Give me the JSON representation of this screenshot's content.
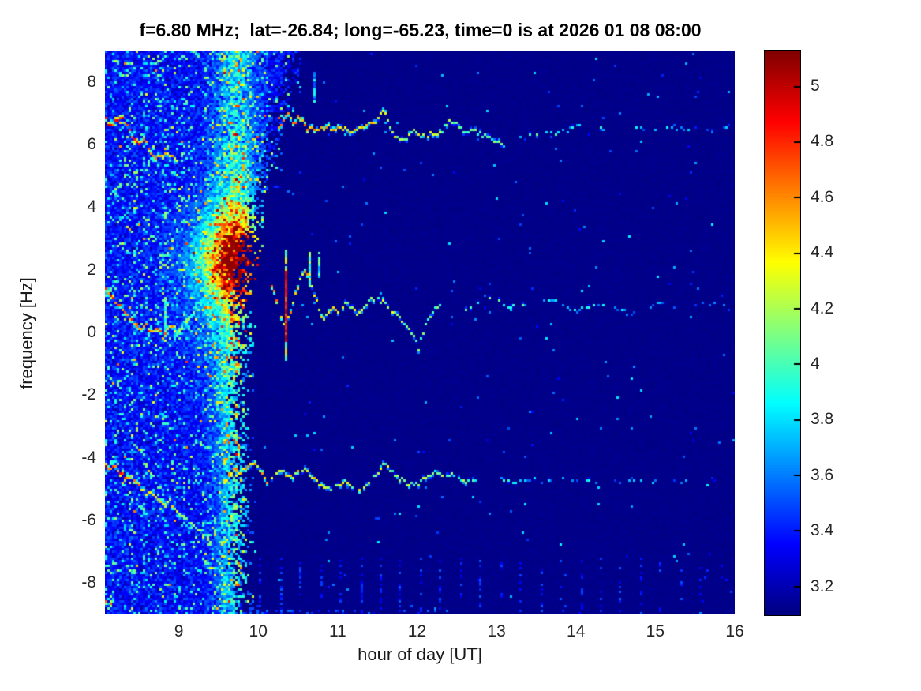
{
  "title": "f=6.80 MHz;  lat=-26.84; long=-65.23, time=0 is at 2026 01 08 08:00",
  "colors": {
    "figure_background": "#ffffff",
    "plot_background_deep_blue": "#00008f",
    "title_text": "#000000",
    "tick_text": "#262626"
  },
  "chart_data": {
    "type": "heatmap",
    "subtype": "spectrogram",
    "colormap": "jet",
    "title": "f=6.80 MHz;  lat=-26.84; long=-65.23, time=0 is at 2026 01 08 08:00",
    "xlabel": "hour of day [UT]",
    "ylabel": "frequency [Hz]",
    "xlim": [
      8.07,
      16
    ],
    "ylim": [
      -9,
      9
    ],
    "x_ticks": [
      9,
      10,
      11,
      12,
      13,
      14,
      15,
      16
    ],
    "y_ticks": [
      8,
      6,
      4,
      2,
      0,
      -2,
      -4,
      -6,
      -8
    ],
    "grid": false,
    "legend": "none",
    "colorbar": {
      "position": "right",
      "min": 3.1,
      "max": 5.13,
      "ticks": [
        5,
        4.8,
        4.6,
        4.4,
        4.2,
        4,
        3.8,
        3.6,
        3.4,
        3.2
      ]
    },
    "background_value": 3.12,
    "noise_region": {
      "t_start": 8.07,
      "t_end_low_freq": 9.66,
      "t_end_high_freq": 10.32,
      "f_knee": 1.5,
      "base_value": 3.3,
      "surge_column": {
        "t_center": 9.72,
        "t_sigma": 0.17,
        "boost": 0.5
      }
    },
    "blob": {
      "center_t": 9.72,
      "center_f": 2.35,
      "sigma_t": 0.3,
      "sigma_f": 0.9,
      "peak_add": 1.4,
      "halo": {
        "sigma_t": 0.45,
        "sigma_f": 2.2,
        "peak_add": 0.5
      },
      "ridge": {
        "from": [
          8.95,
          -0.2
        ],
        "to": [
          9.62,
          2.2
        ],
        "width_f": 0.4,
        "amp": 4.45
      }
    },
    "traces": [
      {
        "name": "upper-echo-bright-left",
        "amp0": 4.85,
        "amp1": 4.45,
        "width": 2,
        "prob": 1.0,
        "points": [
          [
            8.07,
            6.85
          ],
          [
            8.13,
            6.6
          ],
          [
            8.2,
            6.75
          ],
          [
            8.28,
            6.9
          ],
          [
            8.35,
            6.6
          ],
          [
            8.42,
            6.25
          ],
          [
            8.5,
            5.95
          ],
          [
            8.57,
            6.15
          ],
          [
            8.63,
            5.8
          ],
          [
            8.7,
            5.6
          ],
          [
            8.78,
            5.55
          ],
          [
            8.85,
            5.75
          ],
          [
            8.92,
            5.6
          ],
          [
            8.98,
            5.5
          ]
        ]
      },
      {
        "name": "upper-echo-main",
        "amp0": 4.6,
        "amp1": 3.95,
        "width": 1,
        "prob": 0.95,
        "points": [
          [
            10.25,
            6.5
          ],
          [
            10.32,
            6.8
          ],
          [
            10.38,
            6.95
          ],
          [
            10.44,
            6.7
          ],
          [
            10.5,
            6.88
          ],
          [
            10.57,
            6.65
          ],
          [
            10.63,
            6.5
          ],
          [
            10.7,
            6.55
          ],
          [
            10.78,
            6.45
          ],
          [
            10.85,
            6.6
          ],
          [
            10.95,
            6.45
          ],
          [
            11.05,
            6.55
          ],
          [
            11.15,
            6.4
          ],
          [
            11.25,
            6.45
          ],
          [
            11.35,
            6.6
          ],
          [
            11.45,
            6.7
          ],
          [
            11.52,
            6.85
          ],
          [
            11.58,
            7.05
          ],
          [
            11.65,
            6.6
          ],
          [
            11.72,
            6.3
          ],
          [
            11.8,
            6.15
          ],
          [
            11.88,
            6.2
          ],
          [
            11.95,
            6.45
          ],
          [
            12.02,
            6.3
          ],
          [
            12.1,
            6.25
          ],
          [
            12.18,
            6.35
          ],
          [
            12.25,
            6.3
          ],
          [
            12.32,
            6.45
          ],
          [
            12.4,
            6.75
          ],
          [
            12.48,
            6.65
          ],
          [
            12.55,
            6.5
          ],
          [
            12.62,
            6.4
          ],
          [
            12.7,
            6.45
          ],
          [
            12.8,
            6.3
          ],
          [
            12.9,
            6.25
          ],
          [
            13.0,
            6.1
          ],
          [
            13.1,
            5.9
          ]
        ]
      },
      {
        "name": "upper-echo-faint-right",
        "amp0": 3.9,
        "amp1": 3.55,
        "width": 1,
        "prob": 0.3,
        "points": [
          [
            13.3,
            6.3
          ],
          [
            13.55,
            6.4
          ],
          [
            13.8,
            6.35
          ],
          [
            14.0,
            6.6
          ],
          [
            14.2,
            6.5
          ],
          [
            14.45,
            6.55
          ],
          [
            14.7,
            6.6
          ],
          [
            14.95,
            6.5
          ],
          [
            15.2,
            6.55
          ],
          [
            15.45,
            6.45
          ],
          [
            15.7,
            6.5
          ],
          [
            15.95,
            6.6
          ]
        ]
      },
      {
        "name": "center-echo-bright-left",
        "amp0": 4.75,
        "amp1": 4.55,
        "width": 2,
        "prob": 1.0,
        "points": [
          [
            8.07,
            1.45
          ],
          [
            8.15,
            1.15
          ],
          [
            8.22,
            0.95
          ],
          [
            8.3,
            0.75
          ],
          [
            8.38,
            0.5
          ],
          [
            8.46,
            0.2
          ],
          [
            8.52,
            0.05
          ],
          [
            8.58,
            0.3
          ],
          [
            8.64,
            -0.05
          ],
          [
            8.72,
            0.15
          ],
          [
            8.8,
            -0.1
          ],
          [
            8.88,
            0.2
          ],
          [
            8.95,
            0.05
          ]
        ]
      },
      {
        "name": "center-echo-main",
        "amp0": 4.5,
        "amp1": 4.0,
        "width": 1,
        "prob": 0.95,
        "points": [
          [
            10.15,
            1.7
          ],
          [
            10.22,
            1.2
          ],
          [
            10.28,
            0.6
          ],
          [
            10.33,
            0.1
          ],
          [
            10.4,
            0.6
          ],
          [
            10.47,
            1.2
          ],
          [
            10.53,
            1.7
          ],
          [
            10.58,
            1.9
          ],
          [
            10.64,
            1.75
          ],
          [
            10.7,
            1.3
          ],
          [
            10.76,
            0.8
          ],
          [
            10.82,
            0.35
          ],
          [
            10.88,
            0.55
          ],
          [
            10.94,
            0.75
          ],
          [
            11.0,
            0.6
          ],
          [
            11.06,
            0.8
          ],
          [
            11.12,
            1.0
          ],
          [
            11.18,
            0.75
          ],
          [
            11.25,
            0.6
          ],
          [
            11.32,
            0.8
          ],
          [
            11.4,
            1.0
          ],
          [
            11.48,
            1.15
          ],
          [
            11.56,
            1.0
          ],
          [
            11.64,
            0.8
          ],
          [
            11.72,
            0.6
          ],
          [
            11.8,
            0.4
          ],
          [
            11.88,
            0.2
          ],
          [
            11.96,
            -0.1
          ],
          [
            12.02,
            -0.5
          ],
          [
            12.08,
            0.0
          ],
          [
            12.14,
            0.4
          ],
          [
            12.2,
            0.7
          ],
          [
            12.3,
            0.85
          ]
        ]
      },
      {
        "name": "center-echo-faint-right",
        "amp0": 3.95,
        "amp1": 3.55,
        "width": 1,
        "prob": 0.42,
        "points": [
          [
            12.5,
            0.4
          ],
          [
            12.62,
            0.7
          ],
          [
            12.75,
            0.95
          ],
          [
            12.88,
            1.05
          ],
          [
            13.0,
            1.1
          ],
          [
            13.12,
            0.9
          ],
          [
            13.25,
            0.75
          ],
          [
            13.4,
            0.85
          ],
          [
            13.55,
            1.0
          ],
          [
            13.7,
            1.05
          ],
          [
            13.85,
            0.85
          ],
          [
            14.0,
            0.65
          ],
          [
            14.15,
            0.8
          ],
          [
            14.3,
            0.9
          ],
          [
            14.5,
            0.75
          ],
          [
            14.7,
            0.6
          ],
          [
            14.9,
            0.8
          ],
          [
            15.1,
            0.9
          ],
          [
            15.3,
            0.75
          ],
          [
            15.55,
            0.85
          ],
          [
            15.8,
            0.95
          ],
          [
            15.95,
            0.7
          ]
        ]
      },
      {
        "name": "lower-echo-bright-left",
        "amp0": 4.8,
        "amp1": 3.9,
        "width": 2,
        "prob": 1.0,
        "points": [
          [
            8.07,
            -4.15
          ],
          [
            8.14,
            -4.35
          ],
          [
            8.2,
            -4.25
          ],
          [
            8.27,
            -4.5
          ],
          [
            8.34,
            -4.7
          ],
          [
            8.4,
            -4.55
          ],
          [
            8.47,
            -4.75
          ],
          [
            8.54,
            -5.0
          ],
          [
            8.6,
            -5.2
          ],
          [
            8.67,
            -5.05
          ],
          [
            8.74,
            -5.3
          ],
          [
            8.8,
            -5.5
          ],
          [
            8.87,
            -5.35
          ],
          [
            8.94,
            -5.6
          ],
          [
            9.0,
            -5.75
          ],
          [
            9.1,
            -5.95
          ],
          [
            9.2,
            -6.2
          ],
          [
            9.3,
            -6.4
          ],
          [
            9.4,
            -6.55
          ]
        ]
      },
      {
        "name": "lower-echo-main",
        "amp0": 4.45,
        "amp1": 4.0,
        "width": 1,
        "prob": 0.92,
        "points": [
          [
            9.6,
            -4.05
          ],
          [
            9.68,
            -4.3
          ],
          [
            9.75,
            -4.55
          ],
          [
            9.82,
            -4.35
          ],
          [
            9.9,
            -4.2
          ],
          [
            9.97,
            -4.15
          ],
          [
            10.05,
            -4.5
          ],
          [
            10.12,
            -4.8
          ],
          [
            10.2,
            -4.6
          ],
          [
            10.28,
            -4.4
          ],
          [
            10.36,
            -4.55
          ],
          [
            10.44,
            -4.65
          ],
          [
            10.52,
            -4.4
          ],
          [
            10.6,
            -4.35
          ],
          [
            10.7,
            -4.7
          ],
          [
            10.8,
            -4.9
          ],
          [
            10.9,
            -5.0
          ],
          [
            11.0,
            -4.85
          ],
          [
            11.1,
            -4.75
          ],
          [
            11.2,
            -5.0
          ],
          [
            11.3,
            -5.05
          ],
          [
            11.4,
            -4.8
          ],
          [
            11.5,
            -4.55
          ],
          [
            11.58,
            -4.2
          ],
          [
            11.66,
            -4.4
          ],
          [
            11.75,
            -4.6
          ],
          [
            11.85,
            -4.75
          ],
          [
            11.95,
            -4.9
          ],
          [
            12.05,
            -4.75
          ],
          [
            12.15,
            -4.6
          ],
          [
            12.25,
            -4.5
          ],
          [
            12.35,
            -4.55
          ],
          [
            12.45,
            -4.5
          ],
          [
            12.55,
            -4.65
          ],
          [
            12.65,
            -4.8
          ],
          [
            12.75,
            -4.7
          ]
        ]
      },
      {
        "name": "lower-echo-faint-right",
        "amp0": 3.8,
        "amp1": 3.5,
        "width": 1,
        "prob": 0.3,
        "points": [
          [
            12.9,
            -4.75
          ],
          [
            13.05,
            -4.65
          ],
          [
            13.2,
            -4.8
          ],
          [
            13.4,
            -4.7
          ],
          [
            13.6,
            -4.75
          ],
          [
            13.8,
            -4.65
          ],
          [
            14.0,
            -4.7
          ],
          [
            14.2,
            -4.75
          ],
          [
            14.45,
            -4.8
          ],
          [
            14.7,
            -4.7
          ],
          [
            14.9,
            -4.75
          ],
          [
            15.1,
            -4.7
          ],
          [
            15.35,
            -4.8
          ],
          [
            15.6,
            -4.75
          ],
          [
            15.85,
            -4.7
          ]
        ]
      }
    ],
    "vertical_lines": [
      {
        "t": 10.35,
        "f_min": -0.9,
        "f_max": 2.6,
        "amp": 4.2,
        "core_f_min": -0.3,
        "core_f_max": 1.9,
        "core_amp": 4.85
      },
      {
        "t": 10.66,
        "f_min": 1.45,
        "f_max": 2.5,
        "amp": 4.0
      },
      {
        "t": 10.78,
        "f_min": 1.8,
        "f_max": 2.5,
        "amp": 3.9
      },
      {
        "t": 10.7,
        "f_min": 7.4,
        "f_max": 8.3,
        "amp": 3.7
      },
      {
        "t": 8.84,
        "f_min": -0.3,
        "f_max": 1.1,
        "amp": 3.95
      }
    ],
    "bottom_dashes": {
      "t_start": 9.78,
      "period": 0.252,
      "f_top": -7.2,
      "f_bottom": -8.9,
      "value": 3.38
    }
  }
}
